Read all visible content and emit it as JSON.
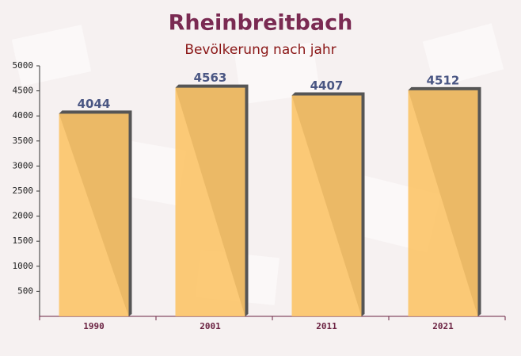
{
  "chart_data": {
    "type": "bar",
    "title": "Rheinbreitbach",
    "subtitle": "Bevölkerung nach jahr",
    "categories": [
      "1990",
      "2001",
      "2011",
      "2021"
    ],
    "values": [
      4044,
      4563,
      4407,
      4512
    ],
    "color": "#fcc468",
    "ylim": [
      0,
      5000
    ],
    "yticks": [
      500,
      1000,
      1500,
      2000,
      2500,
      3000,
      3500,
      4000,
      4500,
      5000
    ]
  }
}
